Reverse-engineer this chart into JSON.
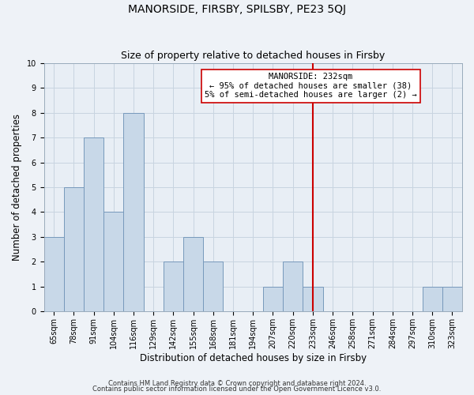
{
  "title": "MANORSIDE, FIRSBY, SPILSBY, PE23 5QJ",
  "subtitle": "Size of property relative to detached houses in Firsby",
  "xlabel": "Distribution of detached houses by size in Firsby",
  "ylabel": "Number of detached properties",
  "categories": [
    "65sqm",
    "78sqm",
    "91sqm",
    "104sqm",
    "116sqm",
    "129sqm",
    "142sqm",
    "155sqm",
    "168sqm",
    "181sqm",
    "194sqm",
    "207sqm",
    "220sqm",
    "233sqm",
    "246sqm",
    "258sqm",
    "271sqm",
    "284sqm",
    "297sqm",
    "310sqm",
    "323sqm"
  ],
  "values": [
    3,
    5,
    7,
    4,
    8,
    0,
    2,
    3,
    2,
    0,
    0,
    1,
    2,
    1,
    0,
    0,
    0,
    0,
    0,
    1,
    1
  ],
  "bar_color": "#c8d8e8",
  "bar_edge_color": "#7799bb",
  "reference_line_index": 13,
  "reference_line_label": "MANORSIDE: 232sqm",
  "annotation_line1": "← 95% of detached houses are smaller (38)",
  "annotation_line2": "5% of semi-detached houses are larger (2) →",
  "reference_line_color": "#cc0000",
  "ylim": [
    0,
    10
  ],
  "yticks": [
    0,
    1,
    2,
    3,
    4,
    5,
    6,
    7,
    8,
    9,
    10
  ],
  "footer_line1": "Contains HM Land Registry data © Crown copyright and database right 2024.",
  "footer_line2": "Contains public sector information licensed under the Open Government Licence v3.0.",
  "background_color": "#eef2f7",
  "plot_background_color": "#e8eef5",
  "grid_color": "#c8d4e0",
  "title_fontsize": 10,
  "subtitle_fontsize": 9,
  "axis_label_fontsize": 8.5,
  "tick_fontsize": 7,
  "annotation_fontsize": 7.5,
  "footer_fontsize": 6
}
